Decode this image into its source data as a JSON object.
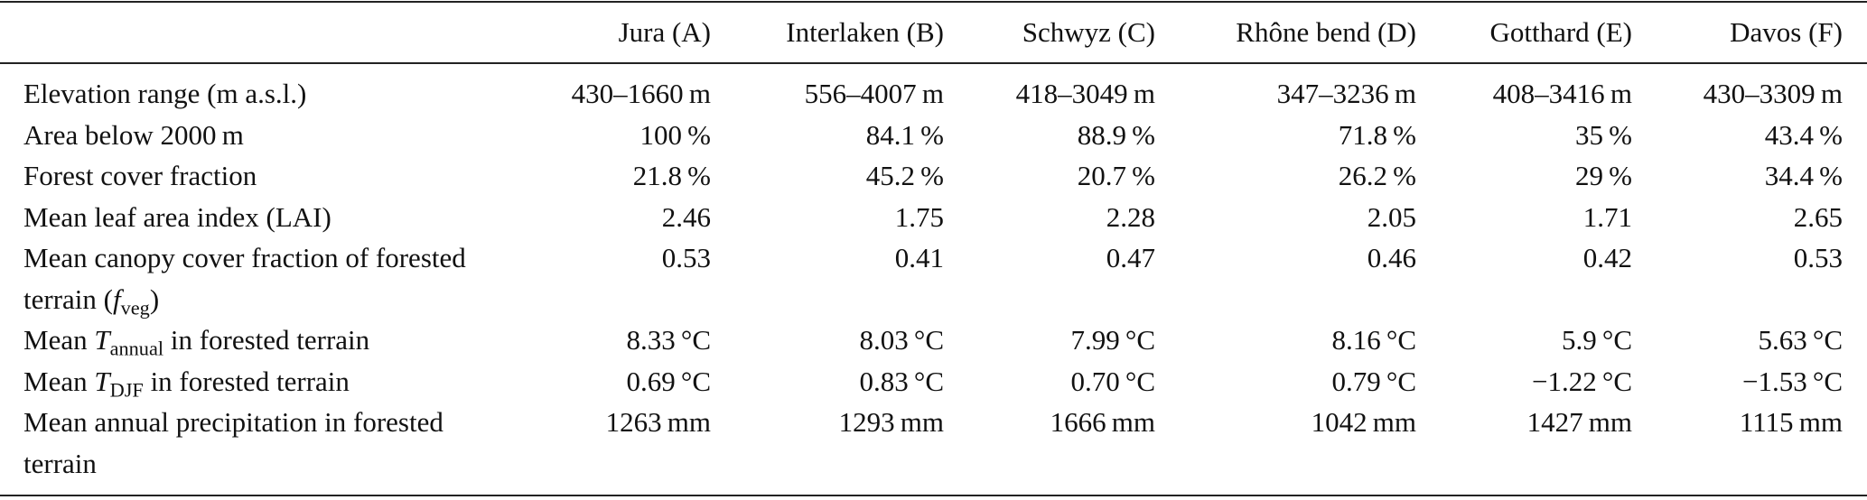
{
  "table": {
    "columns": [
      "Jura (A)",
      "Interlaken (B)",
      "Schwyz (C)",
      "Rhône bend (D)",
      "Gotthard (E)",
      "Davos (F)"
    ],
    "rows": [
      {
        "label": [
          {
            "text": "Elevation range (m a.s.l.)"
          }
        ],
        "values": [
          "430–1660 m",
          "556–4007 m",
          "418–3049 m",
          "347–3236 m",
          "408–3416 m",
          "430–3309 m"
        ]
      },
      {
        "label": [
          {
            "text": "Area below 2000 m"
          }
        ],
        "values": [
          "100 %",
          "84.1 %",
          "88.9 %",
          "71.8 %",
          "35 %",
          "43.4 %"
        ]
      },
      {
        "label": [
          {
            "text": "Forest cover fraction"
          }
        ],
        "values": [
          "21.8 %",
          "45.2 %",
          "20.7 %",
          "26.2 %",
          "29 %",
          "34.4 %"
        ]
      },
      {
        "label": [
          {
            "text": "Mean leaf area index (LAI)"
          }
        ],
        "values": [
          "2.46",
          "1.75",
          "2.28",
          "2.05",
          "1.71",
          "2.65"
        ]
      },
      {
        "label": [
          {
            "text": "Mean canopy cover fraction of forested terrain ("
          },
          {
            "text": "f",
            "style": "italic"
          },
          {
            "text": "veg",
            "style": "sub"
          },
          {
            "text": ")"
          }
        ],
        "values": [
          "0.53",
          "0.41",
          "0.47",
          "0.46",
          "0.42",
          "0.53"
        ]
      },
      {
        "label": [
          {
            "text": "Mean "
          },
          {
            "text": "T",
            "style": "italic"
          },
          {
            "text": "annual",
            "style": "sub"
          },
          {
            "text": " in forested terrain"
          }
        ],
        "values": [
          "8.33 °C",
          "8.03 °C",
          "7.99 °C",
          "8.16 °C",
          "5.9 °C",
          "5.63 °C"
        ]
      },
      {
        "label": [
          {
            "text": "Mean "
          },
          {
            "text": "T",
            "style": "italic"
          },
          {
            "text": "DJF",
            "style": "sub"
          },
          {
            "text": " in forested terrain"
          }
        ],
        "values": [
          "0.69 °C",
          "0.83 °C",
          "0.70 °C",
          "0.79 °C",
          "−1.22 °C",
          "−1.53 °C"
        ]
      },
      {
        "label": [
          {
            "text": "Mean annual precipitation in forested terrain"
          }
        ],
        "values": [
          "1263 mm",
          "1293 mm",
          "1666 mm",
          "1042 mm",
          "1427 mm",
          "1115 mm"
        ]
      }
    ]
  }
}
